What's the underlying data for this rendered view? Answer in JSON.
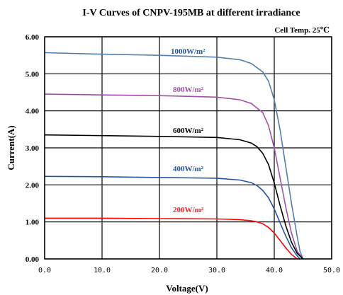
{
  "chart_data": {
    "type": "line",
    "title": "I-V Curves of CNPV-195MB at different irradiance",
    "note": "Cell Temp. 25℃",
    "xlabel": "Voltage(V)",
    "ylabel": "Current(A)",
    "xlim": [
      0,
      50
    ],
    "ylim": [
      0,
      6
    ],
    "xticks": [
      0,
      10,
      20,
      30,
      40,
      50
    ],
    "xtick_labels": [
      "0.0",
      "10.0",
      "20.0",
      "30.0",
      "40.0",
      "50.0"
    ],
    "yticks": [
      0,
      1,
      2,
      3,
      4,
      5,
      6
    ],
    "ytick_labels": [
      "0.00",
      "1.00",
      "2.00",
      "3.00",
      "4.00",
      "5.00",
      "6.00"
    ],
    "grid": true,
    "series": [
      {
        "name": "1000W/m²",
        "color": "#4f7fb0",
        "label_color": "#2255a4",
        "x": [
          0,
          10,
          20,
          30,
          34,
          36,
          38,
          39,
          40,
          41,
          42,
          43,
          44,
          44.5,
          45
        ],
        "y": [
          5.57,
          5.53,
          5.5,
          5.45,
          5.38,
          5.28,
          5.05,
          4.8,
          4.3,
          3.5,
          2.5,
          1.5,
          0.6,
          0.2,
          0
        ]
      },
      {
        "name": "800W/m²",
        "color": "#a050a8",
        "label_color": "#a050a8",
        "x": [
          0,
          10,
          20,
          30,
          34,
          36,
          38,
          39,
          40,
          41,
          42,
          43,
          44,
          45
        ],
        "y": [
          4.45,
          4.43,
          4.41,
          4.37,
          4.3,
          4.2,
          3.95,
          3.6,
          3.0,
          2.2,
          1.4,
          0.7,
          0.2,
          0
        ]
      },
      {
        "name": "600W/m²",
        "color": "#000000",
        "label_color": "#000000",
        "x": [
          0,
          10,
          20,
          30,
          34,
          36,
          37,
          38,
          39,
          40,
          41,
          42,
          43,
          44,
          45
        ],
        "y": [
          3.35,
          3.33,
          3.31,
          3.28,
          3.22,
          3.13,
          3.03,
          2.85,
          2.55,
          2.05,
          1.45,
          0.9,
          0.45,
          0.15,
          0
        ]
      },
      {
        "name": "400W/m²",
        "color": "#2255a4",
        "label_color": "#2255a4",
        "x": [
          0,
          10,
          20,
          30,
          34,
          36,
          37,
          38,
          39,
          40,
          41,
          42,
          43,
          44,
          44.5
        ],
        "y": [
          2.23,
          2.22,
          2.2,
          2.18,
          2.13,
          2.06,
          1.98,
          1.85,
          1.65,
          1.35,
          0.98,
          0.62,
          0.3,
          0.08,
          0
        ]
      },
      {
        "name": "200W/m²",
        "color": "#ff0000",
        "label_color": "#ff2020",
        "x": [
          0,
          10,
          20,
          30,
          34,
          36,
          37,
          38,
          39,
          40,
          41,
          42,
          43,
          44
        ],
        "y": [
          1.1,
          1.1,
          1.09,
          1.08,
          1.06,
          1.03,
          1.0,
          0.95,
          0.85,
          0.7,
          0.5,
          0.3,
          0.12,
          0
        ]
      }
    ]
  }
}
